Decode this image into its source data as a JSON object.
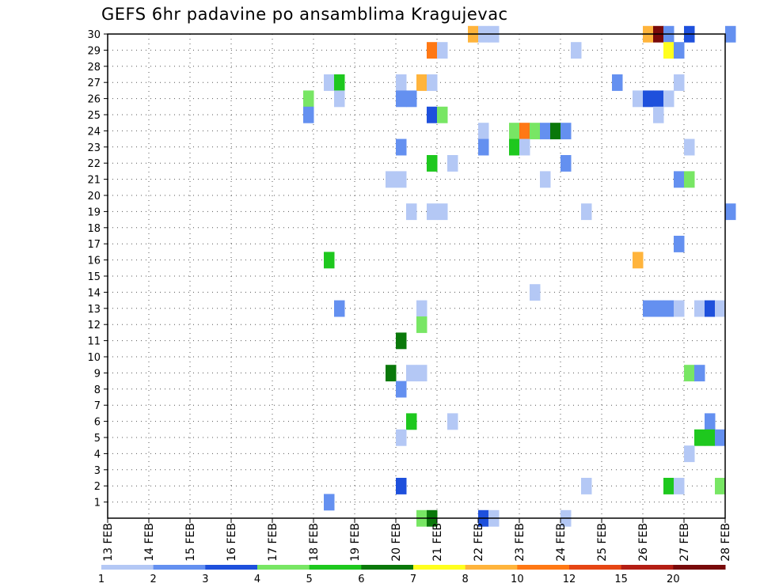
{
  "chart_data": {
    "type": "heatmap",
    "title": "GEFS 6hr padavine po ansamblima Kragujevac",
    "x_tick_labels": [
      "13 FEB",
      "14 FEB",
      "15 FEB",
      "16 FEB",
      "17 FEB",
      "18 FEB",
      "19 FEB",
      "20 FEB",
      "21 FEB",
      "22 FEB",
      "23 FEB",
      "24 FEB",
      "25 FEB",
      "26 FEB",
      "27 FEB",
      "28 FEB"
    ],
    "x_range_days": [
      0,
      15
    ],
    "y_tick_labels": [
      "1",
      "2",
      "3",
      "4",
      "5",
      "6",
      "7",
      "8",
      "9",
      "10",
      "11",
      "12",
      "13",
      "14",
      "15",
      "16",
      "17",
      "18",
      "19",
      "20",
      "21",
      "22",
      "23",
      "24",
      "25",
      "26",
      "27",
      "28",
      "29",
      "30"
    ],
    "y_range": [
      0,
      30
    ],
    "grid": true,
    "colorbar": {
      "labels": [
        "1",
        "2",
        "3",
        "4",
        "5",
        "6",
        "7",
        "8",
        "10",
        "12",
        "15",
        "20"
      ],
      "colors": [
        "#b4c8f5",
        "#6490f0",
        "#1e50dc",
        "#78e664",
        "#1ec81e",
        "#0a780a",
        "#ffff1e",
        "#ffb43c",
        "#ff7814",
        "#e64614",
        "#b41e14",
        "#780a0a"
      ]
    },
    "cell_hours": 6,
    "cells": [
      {
        "t": 21.75,
        "m": 30,
        "c": 8
      },
      {
        "t": 22.0,
        "m": 30,
        "c": 1
      },
      {
        "t": 22.25,
        "m": 30,
        "c": 1
      },
      {
        "t": 26.0,
        "m": 30,
        "c": 8
      },
      {
        "t": 26.25,
        "m": 30,
        "c": 12
      },
      {
        "t": 26.5,
        "m": 30,
        "c": 2
      },
      {
        "t": 27.0,
        "m": 30,
        "c": 3
      },
      {
        "t": 28.0,
        "m": 30,
        "c": 2
      },
      {
        "t": 20.75,
        "m": 29,
        "c": 9
      },
      {
        "t": 21.0,
        "m": 29,
        "c": 1
      },
      {
        "t": 24.25,
        "m": 29,
        "c": 1
      },
      {
        "t": 26.5,
        "m": 29,
        "c": 7
      },
      {
        "t": 26.75,
        "m": 29,
        "c": 2
      },
      {
        "t": 18.25,
        "m": 27,
        "c": 1
      },
      {
        "t": 18.5,
        "m": 27,
        "c": 5
      },
      {
        "t": 20.0,
        "m": 27,
        "c": 1
      },
      {
        "t": 20.5,
        "m": 27,
        "c": 8
      },
      {
        "t": 20.75,
        "m": 27,
        "c": 1
      },
      {
        "t": 25.25,
        "m": 27,
        "c": 2
      },
      {
        "t": 26.75,
        "m": 27,
        "c": 1
      },
      {
        "t": 17.75,
        "m": 26,
        "c": 4
      },
      {
        "t": 18.5,
        "m": 26,
        "c": 1
      },
      {
        "t": 20.0,
        "m": 26,
        "c": 2
      },
      {
        "t": 20.25,
        "m": 26,
        "c": 2
      },
      {
        "t": 25.75,
        "m": 26,
        "c": 1
      },
      {
        "t": 26.0,
        "m": 26,
        "c": 3
      },
      {
        "t": 26.25,
        "m": 26,
        "c": 3
      },
      {
        "t": 26.5,
        "m": 26,
        "c": 1
      },
      {
        "t": 17.75,
        "m": 25,
        "c": 2
      },
      {
        "t": 20.75,
        "m": 25,
        "c": 3
      },
      {
        "t": 21.0,
        "m": 25,
        "c": 4
      },
      {
        "t": 26.25,
        "m": 25,
        "c": 1
      },
      {
        "t": 22.0,
        "m": 24,
        "c": 1
      },
      {
        "t": 22.75,
        "m": 24,
        "c": 4
      },
      {
        "t": 23.0,
        "m": 24,
        "c": 9
      },
      {
        "t": 23.25,
        "m": 24,
        "c": 4
      },
      {
        "t": 23.5,
        "m": 24,
        "c": 2
      },
      {
        "t": 23.75,
        "m": 24,
        "c": 6
      },
      {
        "t": 24.0,
        "m": 24,
        "c": 2
      },
      {
        "t": 20.0,
        "m": 23,
        "c": 2
      },
      {
        "t": 22.0,
        "m": 23,
        "c": 2
      },
      {
        "t": 22.75,
        "m": 23,
        "c": 5
      },
      {
        "t": 23.0,
        "m": 23,
        "c": 1
      },
      {
        "t": 27.0,
        "m": 23,
        "c": 1
      },
      {
        "t": 20.75,
        "m": 22,
        "c": 5
      },
      {
        "t": 21.25,
        "m": 22,
        "c": 1
      },
      {
        "t": 24.0,
        "m": 22,
        "c": 2
      },
      {
        "t": 19.75,
        "m": 21,
        "c": 1
      },
      {
        "t": 20.0,
        "m": 21,
        "c": 1
      },
      {
        "t": 23.5,
        "m": 21,
        "c": 1
      },
      {
        "t": 26.75,
        "m": 21,
        "c": 2
      },
      {
        "t": 27.0,
        "m": 21,
        "c": 4
      },
      {
        "t": 20.25,
        "m": 19,
        "c": 1
      },
      {
        "t": 20.75,
        "m": 19,
        "c": 1
      },
      {
        "t": 21.0,
        "m": 19,
        "c": 1
      },
      {
        "t": 24.5,
        "m": 19,
        "c": 1
      },
      {
        "t": 28.0,
        "m": 19,
        "c": 2
      },
      {
        "t": 26.75,
        "m": 17,
        "c": 2
      },
      {
        "t": 18.25,
        "m": 16,
        "c": 5
      },
      {
        "t": 25.75,
        "m": 16,
        "c": 8
      },
      {
        "t": 23.25,
        "m": 14,
        "c": 1
      },
      {
        "t": 18.5,
        "m": 13,
        "c": 2
      },
      {
        "t": 20.5,
        "m": 13,
        "c": 1
      },
      {
        "t": 26.0,
        "m": 13,
        "c": 2
      },
      {
        "t": 26.25,
        "m": 13,
        "c": 2
      },
      {
        "t": 26.5,
        "m": 13,
        "c": 2
      },
      {
        "t": 26.75,
        "m": 13,
        "c": 1
      },
      {
        "t": 27.25,
        "m": 13,
        "c": 1
      },
      {
        "t": 27.5,
        "m": 13,
        "c": 3
      },
      {
        "t": 27.75,
        "m": 13,
        "c": 1
      },
      {
        "t": 20.5,
        "m": 12,
        "c": 4
      },
      {
        "t": 20.0,
        "m": 11,
        "c": 6
      },
      {
        "t": 19.75,
        "m": 9,
        "c": 6
      },
      {
        "t": 20.25,
        "m": 9,
        "c": 1
      },
      {
        "t": 20.5,
        "m": 9,
        "c": 1
      },
      {
        "t": 27.0,
        "m": 9,
        "c": 4
      },
      {
        "t": 27.25,
        "m": 9,
        "c": 2
      },
      {
        "t": 20.0,
        "m": 8,
        "c": 2
      },
      {
        "t": 20.25,
        "m": 6,
        "c": 5
      },
      {
        "t": 21.25,
        "m": 6,
        "c": 1
      },
      {
        "t": 27.5,
        "m": 6,
        "c": 2
      },
      {
        "t": 20.0,
        "m": 5,
        "c": 1
      },
      {
        "t": 27.25,
        "m": 5,
        "c": 5
      },
      {
        "t": 27.5,
        "m": 5,
        "c": 5
      },
      {
        "t": 27.75,
        "m": 5,
        "c": 2
      },
      {
        "t": 27.0,
        "m": 4,
        "c": 1
      },
      {
        "t": 20.0,
        "m": 2,
        "c": 3
      },
      {
        "t": 24.5,
        "m": 2,
        "c": 1
      },
      {
        "t": 26.5,
        "m": 2,
        "c": 5
      },
      {
        "t": 26.75,
        "m": 2,
        "c": 1
      },
      {
        "t": 27.75,
        "m": 2,
        "c": 4
      },
      {
        "t": 18.25,
        "m": 1,
        "c": 2
      },
      {
        "t": 20.5,
        "m": 0,
        "c": 4
      },
      {
        "t": 20.75,
        "m": 0,
        "c": 6
      },
      {
        "t": 22.0,
        "m": 0,
        "c": 3
      },
      {
        "t": 22.25,
        "m": 0,
        "c": 1
      },
      {
        "t": 24.0,
        "m": 0,
        "c": 1
      }
    ]
  }
}
